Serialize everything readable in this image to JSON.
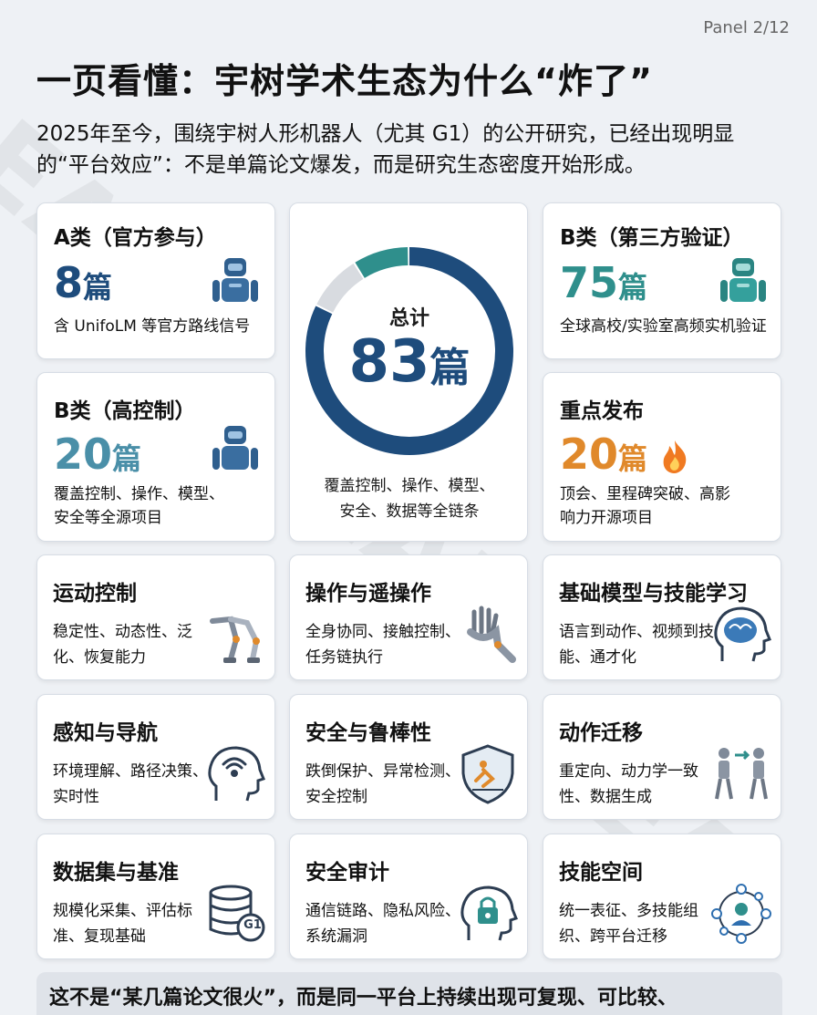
{
  "panel": "Panel 2/12",
  "title": "一页看懂：宇树学术生态为什么“炸了”",
  "intro": "2025年至今，围绕宇树人形机器人（尤其 G1）的公开研究，已经出现明显的“平台效应”：不是单篇论文爆发，而是研究生态密度开始形成。",
  "colors": {
    "blue": "#1e4c7c",
    "teal": "#2f8f8c",
    "light": "#d8dbe0",
    "orange": "#e0892b"
  },
  "card_a": {
    "title": "A类（官方参与）",
    "number": "8",
    "unit": "篇",
    "desc": "含 UnifoLM 等官方路线信号",
    "icon": "robot-icon"
  },
  "card_b3": {
    "title": "B类（第三方验证）",
    "number": "75",
    "unit": "篇",
    "desc": "全球高校/实验室高频实机验证",
    "icon": "robot-icon"
  },
  "card_bh": {
    "title": "B类（高控制）",
    "number": "20",
    "unit": "篇",
    "desc": "覆盖控制、操作、模型、安全等全源项目",
    "icon": "robot-icon"
  },
  "card_key": {
    "title": "重点发布",
    "number": "20",
    "unit": "篇",
    "desc": "顶会、里程碑突破、高影响力开源项目",
    "icon": "fire-icon"
  },
  "donut": {
    "label": "总计",
    "number": "83",
    "unit": "篇",
    "desc": "覆盖控制、操作、模型、安全、数据等全链条",
    "segments": [
      {
        "name": "blue",
        "value": 75
      },
      {
        "name": "teal",
        "value": 8
      },
      {
        "name": "light",
        "value": 8
      }
    ]
  },
  "topics": [
    {
      "title": "运动控制",
      "desc": "稳定性、动态性、泛化、恢复能力",
      "icon": "robot-legs-icon"
    },
    {
      "title": "操作与遥操作",
      "desc": "全身协同、接触控制、任务链执行",
      "icon": "robot-hand-icon"
    },
    {
      "title": "基础模型与技能学习",
      "desc": "语言到动作、视频到技能、通才化",
      "icon": "brain-head-icon"
    },
    {
      "title": "感知与导航",
      "desc": "环境理解、路径决策、实时性",
      "icon": "perception-head-icon"
    },
    {
      "title": "安全与鲁棒性",
      "desc": "跌倒保护、异常检测、安全控制",
      "icon": "shield-icon"
    },
    {
      "title": "动作迁移",
      "desc": "重定向、动力学一致性、数据生成",
      "icon": "motion-transfer-icon"
    },
    {
      "title": "数据集与基准",
      "desc": "规模化采集、评估标准、复现基础",
      "icon": "database-icon",
      "badge": "G1"
    },
    {
      "title": "安全审计",
      "desc": "通信链路、隐私风险、系统漏洞",
      "icon": "lock-head-icon"
    },
    {
      "title": "技能空间",
      "desc": "统一表征、多技能组织、跨平台迁移",
      "icon": "network-icon"
    }
  ],
  "footer": "这不是“某几篇论文很火”，而是同一平台上持续出现可复现、可比较、"
}
